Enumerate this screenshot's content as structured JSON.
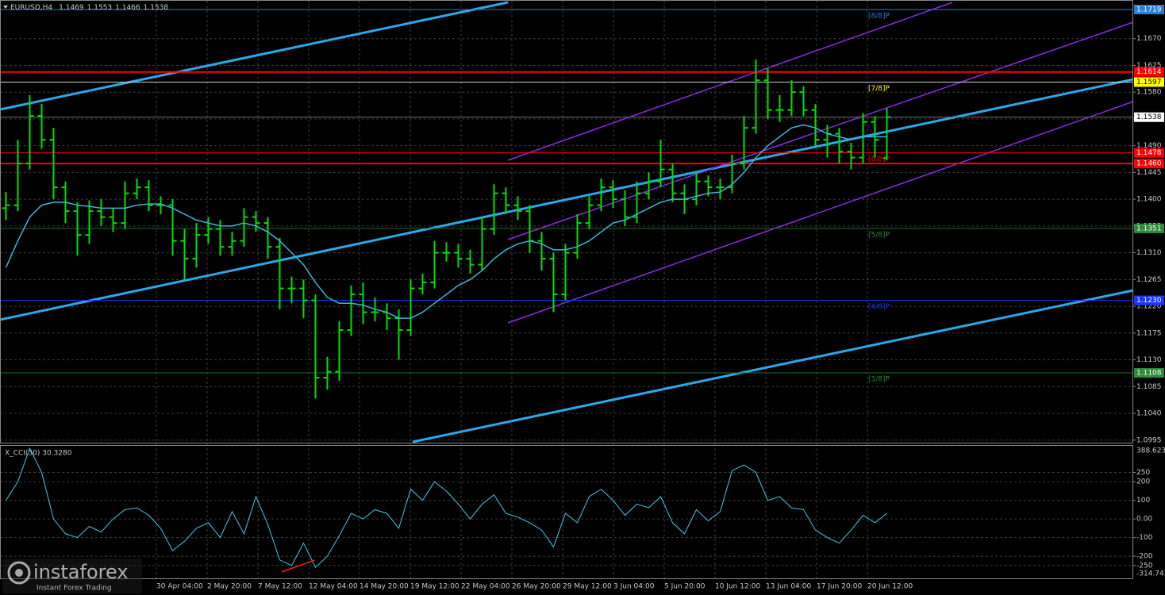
{
  "chart_data": [
    {
      "type": "candlestick",
      "title": "EURUSD,H4",
      "color": "#00e000",
      "grid": true,
      "open": [
        1.1385,
        1.139,
        1.146,
        1.154,
        1.15,
        1.142,
        1.138,
        1.134,
        1.138,
        1.137,
        1.136,
        1.141,
        1.142,
        1.139,
        1.139,
        1.133,
        1.13,
        1.134,
        1.135,
        1.132,
        1.133,
        1.137,
        1.136,
        1.132,
        1.125,
        1.125,
        1.123,
        1.11,
        1.111,
        1.118,
        1.124,
        1.121,
        1.121,
        1.12,
        1.118,
        1.125,
        1.126,
        1.131,
        1.131,
        1.13,
        1.129,
        1.135,
        1.141,
        1.139,
        1.138,
        1.133,
        1.13,
        1.124,
        1.131,
        1.136,
        1.139,
        1.142,
        1.14,
        1.137,
        1.141,
        1.143,
        1.145,
        1.141,
        1.14,
        1.143,
        1.142,
        1.142,
        1.146,
        1.152,
        1.16,
        1.155,
        1.155,
        1.158,
        1.155,
        1.15,
        1.151,
        1.148,
        1.147,
        1.153,
        1.1469
      ],
      "high": [
        1.1412,
        1.15,
        1.1575,
        1.156,
        1.152,
        1.143,
        1.1395,
        1.1398,
        1.14,
        1.1385,
        1.143,
        1.1435,
        1.1432,
        1.1405,
        1.14,
        1.135,
        1.136,
        1.137,
        1.1365,
        1.1345,
        1.1385,
        1.138,
        1.137,
        1.1335,
        1.127,
        1.1265,
        1.124,
        1.1135,
        1.1195,
        1.1255,
        1.126,
        1.1235,
        1.1225,
        1.1215,
        1.1265,
        1.1275,
        1.133,
        1.1328,
        1.1325,
        1.1315,
        1.137,
        1.1425,
        1.142,
        1.1405,
        1.139,
        1.1345,
        1.131,
        1.1325,
        1.1375,
        1.1405,
        1.1435,
        1.1432,
        1.1415,
        1.143,
        1.1445,
        1.15,
        1.146,
        1.1425,
        1.1445,
        1.144,
        1.1435,
        1.1475,
        1.154,
        1.1635,
        1.162,
        1.1575,
        1.16,
        1.159,
        1.156,
        1.1525,
        1.152,
        1.1495,
        1.1545,
        1.154,
        1.1553
      ],
      "low": [
        1.1365,
        1.138,
        1.145,
        1.1485,
        1.14,
        1.136,
        1.1305,
        1.1325,
        1.1355,
        1.1345,
        1.135,
        1.14,
        1.138,
        1.1375,
        1.1305,
        1.1265,
        1.1285,
        1.1325,
        1.1305,
        1.1305,
        1.132,
        1.1345,
        1.13,
        1.1215,
        1.1225,
        1.12,
        1.1065,
        1.108,
        1.1095,
        1.117,
        1.119,
        1.1195,
        1.118,
        1.113,
        1.117,
        1.124,
        1.125,
        1.1295,
        1.1285,
        1.1275,
        1.128,
        1.134,
        1.1375,
        1.1365,
        1.131,
        1.128,
        1.121,
        1.123,
        1.13,
        1.135,
        1.138,
        1.1385,
        1.1355,
        1.136,
        1.14,
        1.142,
        1.1395,
        1.1375,
        1.139,
        1.1405,
        1.14,
        1.141,
        1.145,
        1.151,
        1.1535,
        1.153,
        1.154,
        1.154,
        1.149,
        1.147,
        1.146,
        1.145,
        1.146,
        1.147,
        1.1466
      ],
      "close": [
        1.139,
        1.146,
        1.154,
        1.15,
        1.142,
        1.138,
        1.134,
        1.138,
        1.137,
        1.136,
        1.141,
        1.142,
        1.139,
        1.139,
        1.133,
        1.13,
        1.134,
        1.135,
        1.132,
        1.133,
        1.137,
        1.136,
        1.132,
        1.125,
        1.125,
        1.123,
        1.11,
        1.111,
        1.118,
        1.124,
        1.121,
        1.121,
        1.12,
        1.118,
        1.125,
        1.126,
        1.131,
        1.131,
        1.13,
        1.129,
        1.135,
        1.141,
        1.139,
        1.138,
        1.133,
        1.13,
        1.124,
        1.131,
        1.136,
        1.139,
        1.142,
        1.14,
        1.137,
        1.141,
        1.143,
        1.145,
        1.141,
        1.14,
        1.143,
        1.142,
        1.142,
        1.146,
        1.152,
        1.16,
        1.155,
        1.155,
        1.158,
        1.155,
        1.15,
        1.151,
        1.148,
        1.147,
        1.153,
        1.15,
        1.1538
      ],
      "moving_average": {
        "color": "#3cb4d8",
        "values": [
          1.1285,
          1.133,
          1.137,
          1.139,
          1.1395,
          1.1395,
          1.139,
          1.1388,
          1.1385,
          1.1385,
          1.1385,
          1.139,
          1.1392,
          1.1392,
          1.1385,
          1.1375,
          1.1365,
          1.136,
          1.1355,
          1.1355,
          1.136,
          1.1355,
          1.1345,
          1.133,
          1.131,
          1.129,
          1.126,
          1.1235,
          1.1225,
          1.1225,
          1.1222,
          1.1215,
          1.121,
          1.12,
          1.12,
          1.121,
          1.1225,
          1.124,
          1.1255,
          1.1265,
          1.128,
          1.13,
          1.1315,
          1.1325,
          1.133,
          1.1325,
          1.1315,
          1.1315,
          1.132,
          1.133,
          1.1345,
          1.136,
          1.1365,
          1.1375,
          1.1385,
          1.1395,
          1.14,
          1.14,
          1.1405,
          1.141,
          1.1412,
          1.1425,
          1.1445,
          1.147,
          1.149,
          1.1505,
          1.152,
          1.1525,
          1.152,
          1.151,
          1.1505,
          1.15,
          1.1505,
          1.1505,
          1.1505
        ]
      },
      "ylim": [
        1.0992,
        1.1731
      ],
      "yticks": [
        1.0995,
        {
          "value": 1.104,
          "label": "1.1040"
        },
        1.1085,
        {
          "value": 1.113,
          "label": "1.1130"
        },
        1.1175,
        {
          "value": 1.122,
          "label": "1.1220"
        },
        1.1265,
        {
          "value": 1.131,
          "label": "1.1310"
        },
        1.1355,
        {
          "value": 1.14,
          "label": "1.1400"
        },
        1.1445,
        {
          "value": 1.149,
          "label": "1.1490"
        },
        1.1535,
        {
          "value": 1.158,
          "label": "1.1580"
        },
        1.1625,
        {
          "value": 1.167,
          "label": "1.1670"
        }
      ],
      "xtick_labels": [
        "30 Apr 04:00",
        "2 May 20:00",
        "7 May 12:00",
        "12 May 04:00",
        "14 May 20:00",
        "19 May 12:00",
        "22 May 04:00",
        "26 May 20:00",
        "29 May 12:00",
        "3 Jun 04:00",
        "5 Jun 20:00",
        "10 Jun 12:00",
        "13 Jun 04:00",
        "17 Jun 20:00",
        "20 Jun 12:00"
      ],
      "levels": [
        {
          "value": 1.1719,
          "color": "#2a7fd8",
          "box": "#2a7fd8",
          "murrey": "[8/8]P"
        },
        {
          "value": 1.1614,
          "color": "#ff0000",
          "box": "#ff0000",
          "width": 2
        },
        {
          "value": 1.1597,
          "color": "#d0d0d0",
          "box": "#ffff00",
          "murrey": "[7/8]P"
        },
        {
          "value": 1.1538,
          "color": "#707070",
          "box": "#ffffff"
        },
        {
          "value": 1.1478,
          "color": "#ff0000",
          "box": "#ff0000",
          "murrey": "[6/8]P"
        },
        {
          "value": 1.146,
          "label": "1.1460",
          "color": "#ff0000",
          "box": "#ff0000",
          "width": 2
        },
        {
          "value": 1.1351,
          "color": "#1f6b2a",
          "box": "#2e8b3a",
          "murrey": "[5/8]P"
        },
        {
          "value": 1.123,
          "label": "1.1230",
          "color": "#1a36ff",
          "box": "#1a36ff",
          "murrey": "[4/8]P"
        },
        {
          "value": 1.1108,
          "color": "#1f6b2a",
          "box": "#2e8b3a",
          "murrey": "[3/8]P"
        }
      ]
    },
    {
      "type": "line",
      "title": "X_CCI(30) 30.3280",
      "color": "#40c8f0",
      "values": [
        100,
        200,
        380,
        250,
        0,
        -80,
        -100,
        -40,
        -70,
        0,
        50,
        60,
        20,
        -50,
        -170,
        -120,
        -50,
        -20,
        -100,
        40,
        -80,
        120,
        -30,
        -220,
        -250,
        -130,
        -260,
        -200,
        -90,
        30,
        0,
        50,
        30,
        -50,
        160,
        100,
        200,
        150,
        80,
        0,
        80,
        130,
        30,
        10,
        -20,
        -60,
        -150,
        30,
        -20,
        120,
        160,
        100,
        20,
        80,
        60,
        120,
        -20,
        -80,
        50,
        -10,
        40,
        260,
        290,
        250,
        100,
        120,
        60,
        50,
        -60,
        -100,
        -130,
        -60,
        20,
        -20,
        30.328
      ],
      "ylim": [
        -314.7434,
        388.6237
      ],
      "yticks": [
        250,
        200,
        100,
        {
          "value": 0,
          "label": "0.00"
        },
        -100,
        -200,
        -250
      ]
    }
  ],
  "watermark": {
    "brand": "instaforex",
    "tagline": "Instant Forex Trading"
  }
}
